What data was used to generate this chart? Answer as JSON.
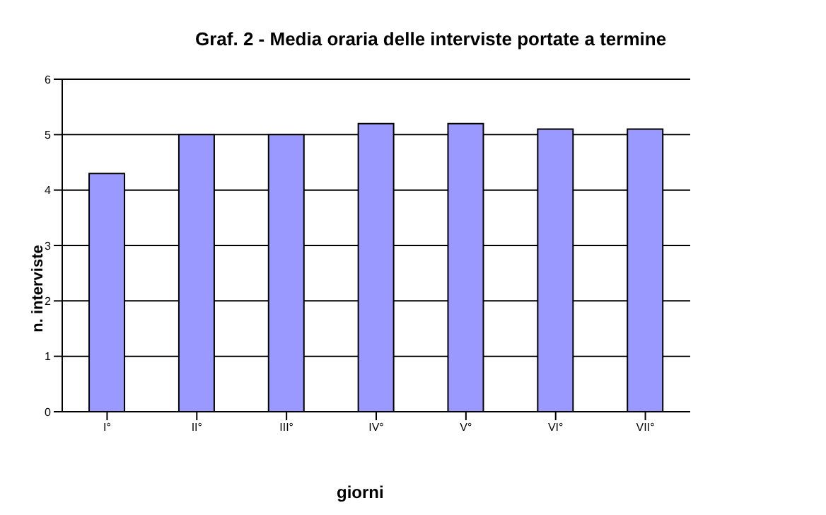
{
  "chart_data": {
    "type": "bar",
    "title": "Graf. 2 - Media oraria delle interviste portate a termine",
    "xlabel": "giorni",
    "ylabel": "n. interviste",
    "categories": [
      "I°",
      "II°",
      "III°",
      "IV°",
      "V°",
      "VI°",
      "VII°"
    ],
    "values": [
      4.3,
      5,
      5,
      5.2,
      5.2,
      5.1,
      5.1
    ],
    "color": "#9999ff",
    "ylim": [
      0,
      6
    ],
    "yticks": [
      0,
      1,
      2,
      3,
      4,
      5,
      6
    ],
    "grid": "y"
  }
}
